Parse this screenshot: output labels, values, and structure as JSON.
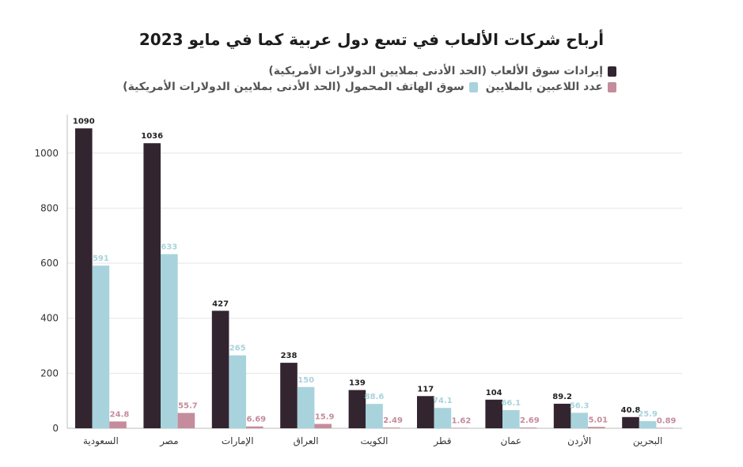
{
  "chart_data": {
    "type": "bar",
    "title": "أرباح شركات الألعاب في تسع دول عربية كما في مايو 2023",
    "categories": [
      "السعودية",
      "مصر",
      "الإمارات",
      "العراق",
      "الكويت",
      "قطر",
      "عمان",
      "الأردن",
      "البحرين"
    ],
    "series": [
      {
        "name": "إيرادات سوق الألعاب (الحد الأدنى بملايين الدولارات الأمريكية)",
        "color": "#33252f",
        "label_color": "#222222",
        "values": [
          1090,
          1036,
          427,
          238,
          139,
          117,
          104,
          89.2,
          40.8
        ],
        "labels": [
          "1090",
          "1036",
          "427",
          "238",
          "139",
          "117",
          "104",
          "89.2",
          "40.8"
        ]
      },
      {
        "name": "سوق الهاتف المحمول (الحد الأدنى بملايين الدولارات الأمريكية)",
        "color": "#a8d3dc",
        "label_color": "#a8d3dc",
        "values": [
          591,
          633,
          265,
          150,
          88.6,
          74.1,
          66.1,
          56.3,
          25.9
        ],
        "labels": [
          "591",
          "633",
          "265",
          "150",
          "88.6",
          "74.1",
          "66.1",
          "56.3",
          "25.9"
        ]
      },
      {
        "name": "عدد اللاعبين بالملايين",
        "color": "#c48c9c",
        "label_color": "#c48c9c",
        "values": [
          24.8,
          55.7,
          6.69,
          15.9,
          2.49,
          1.62,
          2.69,
          5.01,
          0.89
        ],
        "labels": [
          "24.8",
          "55.7",
          "6.69",
          "15.9",
          "2.49",
          "1.62",
          "2.69",
          "5.01",
          "0.89"
        ]
      }
    ],
    "ylim": [
      0,
      1140
    ],
    "yticks": [
      0,
      200,
      400,
      600,
      800,
      1000
    ],
    "grid": true,
    "legend_position": "top",
    "xlabel": "",
    "ylabel": ""
  }
}
